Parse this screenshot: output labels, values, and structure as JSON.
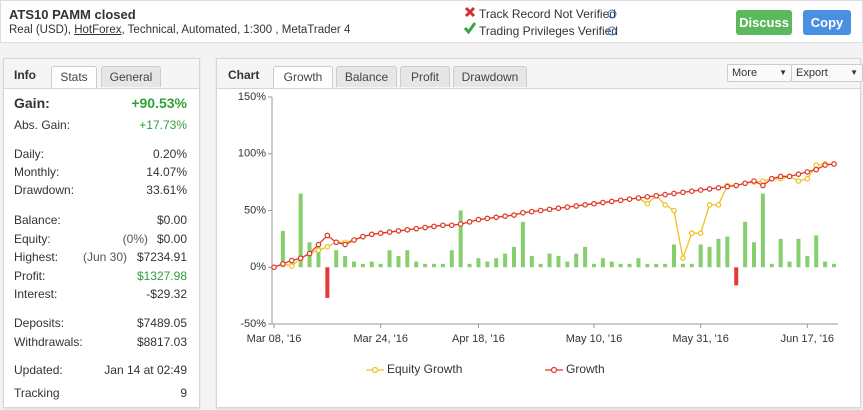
{
  "header": {
    "title": "ATS10 PAMM closed",
    "subtitle": [
      "Real (USD), ",
      "HotForex",
      ", Technical, Automated, 1:300 , MetaTrader 4"
    ],
    "status": [
      "Track Record Not Verified",
      "Trading Privileges Verified"
    ],
    "buttons": [
      "Discuss",
      "Copy"
    ]
  },
  "info": {
    "label": "Info",
    "tabs": [
      "Stats",
      "General"
    ],
    "groups": [
      [
        {
          "label": "Gain:",
          "value": "+90.53%",
          "color": "#2ea13a"
        },
        {
          "label": "Abs. Gain:",
          "value": "+17.73%",
          "color": "#2ea13a"
        }
      ],
      [
        {
          "label": "Daily:",
          "value": "0.20%"
        },
        {
          "label": "Monthly:",
          "value": "14.07%"
        },
        {
          "label": "Drawdown:",
          "value": "33.61%"
        }
      ],
      [
        {
          "label": "Balance:",
          "value": "$0.00"
        },
        {
          "label": "Equity:",
          "note": "(0%)",
          "value": "$0.00"
        },
        {
          "label": "Highest:",
          "note": "(Jun 30)",
          "value": "$7234.91"
        },
        {
          "label": "Profit:",
          "value": "$1327.98",
          "color": "#2ea13a"
        },
        {
          "label": "Interest:",
          "value": "-$29.32"
        }
      ],
      [
        {
          "label": "Deposits:",
          "value": "$7489.05"
        },
        {
          "label": "Withdrawals:",
          "value": "$8817.03"
        }
      ],
      [
        {
          "label": "Updated:",
          "value": "Jan 14 at 02:49"
        },
        {
          "label": "Tracking",
          "value": "9"
        }
      ]
    ]
  },
  "chart_panel": {
    "label": "Chart",
    "tabs": [
      "Growth",
      "Balance",
      "Profit",
      "Drawdown"
    ],
    "menus": [
      "More",
      "Export"
    ],
    "chart_data": {
      "type": "line",
      "categories": [
        "Mar 08, '16",
        null,
        null,
        null,
        null,
        null,
        null,
        null,
        null,
        null,
        null,
        null,
        "Mar 24, '16",
        null,
        null,
        null,
        null,
        null,
        null,
        null,
        null,
        null,
        null,
        "Apr 18, '16",
        null,
        null,
        null,
        null,
        null,
        null,
        null,
        null,
        null,
        null,
        null,
        null,
        "May 10, '16",
        null,
        null,
        null,
        null,
        null,
        null,
        null,
        null,
        null,
        null,
        null,
        "May 31, '16",
        null,
        null,
        null,
        null,
        null,
        null,
        null,
        null,
        null,
        null,
        null,
        "Jun 17, '16",
        null,
        null,
        null
      ],
      "series": [
        {
          "name": "Equity Growth",
          "color": "#f0c020",
          "values": [
            0,
            3,
            1,
            8,
            12,
            15,
            18,
            22,
            22,
            24,
            27,
            29,
            30,
            31,
            32,
            33,
            34,
            35,
            36,
            37,
            37,
            38,
            40,
            42,
            43,
            44,
            45,
            46,
            48,
            49,
            50,
            51,
            52,
            53,
            54,
            55,
            56,
            57,
            58,
            59,
            60,
            61,
            56,
            63,
            55,
            50,
            8,
            30,
            30,
            55,
            55,
            72,
            72,
            74,
            75,
            76,
            78,
            78,
            80,
            76,
            78,
            90,
            91,
            91
          ]
        },
        {
          "name": "Growth",
          "color": "#e0352b",
          "values": [
            0,
            3,
            6,
            8,
            12,
            20,
            28,
            22,
            20,
            24,
            27,
            29,
            30,
            31,
            32,
            33,
            34,
            35,
            36,
            37,
            37,
            38,
            40,
            42,
            43,
            44,
            45,
            46,
            48,
            49,
            50,
            51,
            52,
            53,
            54,
            55,
            56,
            57,
            58,
            59,
            60,
            61,
            62,
            63,
            64,
            65,
            66,
            67,
            68,
            69,
            70,
            71,
            72,
            74,
            76,
            72,
            78,
            80,
            80,
            82,
            84,
            86,
            90,
            91
          ]
        }
      ],
      "daily_values": [
        0,
        32,
        5,
        65,
        22,
        18,
        -27,
        15,
        10,
        5,
        3,
        5,
        3,
        15,
        10,
        15,
        5,
        3,
        3,
        3,
        15,
        50,
        3,
        8,
        5,
        8,
        12,
        18,
        40,
        10,
        3,
        12,
        10,
        5,
        12,
        18,
        3,
        8,
        5,
        3,
        3,
        8,
        3,
        3,
        3,
        20,
        3,
        3,
        20,
        18,
        25,
        27,
        -16,
        40,
        22,
        65,
        3,
        25,
        5,
        25,
        10,
        28,
        5,
        3
      ],
      "bar_color": "#86cf6e",
      "bar_negative_color": "#e53935",
      "ylim": [
        -50,
        150
      ],
      "yticks": [
        {
          "value": -50,
          "label": "-50%"
        },
        {
          "value": 0,
          "label": "0%"
        },
        {
          "value": 50,
          "label": "50%"
        },
        {
          "value": 100,
          "label": "100%"
        },
        {
          "value": 150,
          "label": "150%"
        }
      ],
      "grid": false
    }
  }
}
